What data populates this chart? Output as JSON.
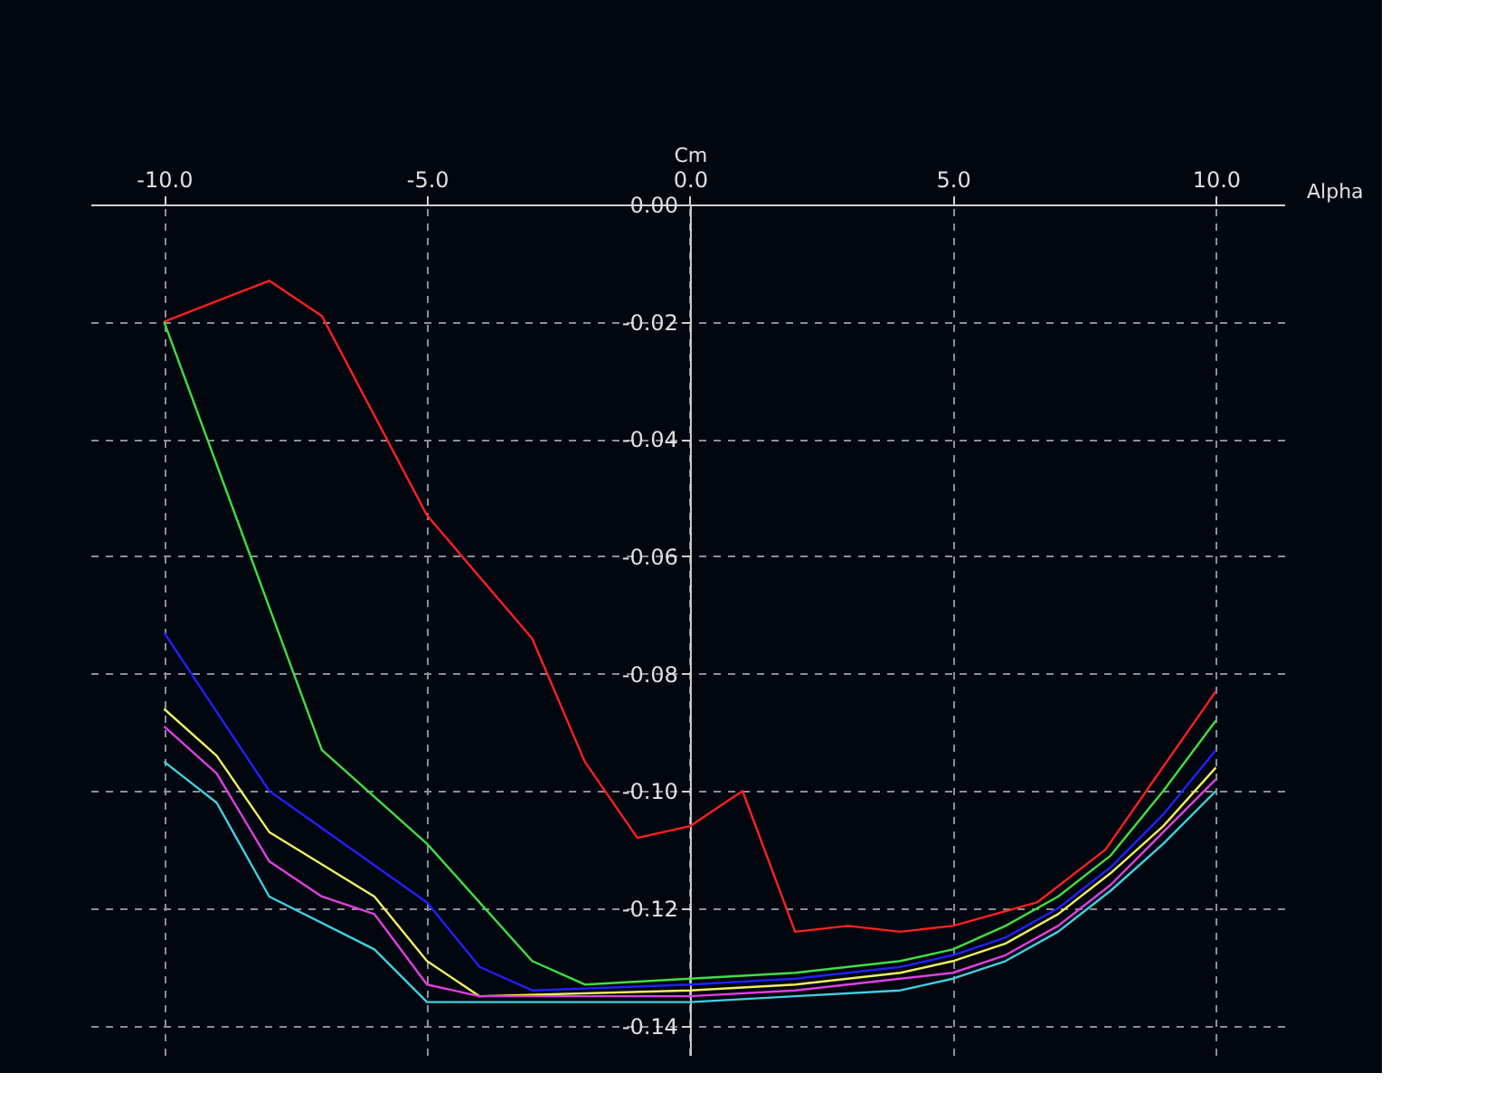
{
  "chart_data": {
    "type": "line",
    "xlabel": "Alpha",
    "ylabel": "Cm",
    "xlim": [
      -11.4,
      11.3
    ],
    "ylim": [
      -0.145,
      0.0
    ],
    "xticks": [
      {
        "value": -10,
        "label": "-10.0"
      },
      {
        "value": -5,
        "label": "-5.0"
      },
      {
        "value": 0,
        "label": "0.0"
      },
      {
        "value": 5,
        "label": "5.0"
      },
      {
        "value": 10,
        "label": "10.0"
      }
    ],
    "yticks": [
      {
        "value": -0.14,
        "label": "-0.14"
      },
      {
        "value": -0.12,
        "label": "-0.12"
      },
      {
        "value": -0.1,
        "label": "-0.10"
      },
      {
        "value": -0.08,
        "label": "-0.08"
      },
      {
        "value": -0.06,
        "label": "-0.06"
      },
      {
        "value": -0.04,
        "label": "-0.04"
      },
      {
        "value": -0.02,
        "label": "-0.02"
      },
      {
        "value": 0,
        "label": "0.00"
      }
    ],
    "grid": true,
    "legend": false,
    "line_style": "solid",
    "marker": "none",
    "series": [
      {
        "color": "#ff2020",
        "x": [
          -10,
          -8,
          -7,
          -5,
          -3,
          -2,
          -1,
          0,
          1,
          2,
          3,
          4,
          5,
          6.6,
          7.9,
          10
        ],
        "values": [
          -0.02,
          -0.013,
          -0.019,
          -0.053,
          -0.074,
          -0.095,
          -0.108,
          -0.106,
          -0.1,
          -0.124,
          -0.123,
          -0.124,
          -0.123,
          -0.119,
          -0.11,
          -0.083
        ]
      },
      {
        "color": "#40e040",
        "x": [
          -10,
          -7,
          -5,
          -3,
          -2,
          0,
          2,
          4,
          5,
          6,
          7,
          8,
          9,
          10
        ],
        "values": [
          -0.02,
          -0.093,
          -0.109,
          -0.129,
          -0.133,
          -0.132,
          -0.131,
          -0.129,
          -0.127,
          -0.123,
          -0.118,
          -0.111,
          -0.1,
          -0.088
        ]
      },
      {
        "color": "#2020ff",
        "x": [
          -10,
          -8,
          -5,
          -4,
          -3,
          0,
          2,
          4,
          5,
          6,
          7,
          8,
          9,
          10
        ],
        "values": [
          -0.073,
          -0.1,
          -0.119,
          -0.13,
          -0.134,
          -0.133,
          -0.132,
          -0.13,
          -0.128,
          -0.125,
          -0.12,
          -0.113,
          -0.104,
          -0.093
        ]
      },
      {
        "color": "#f0f060",
        "x": [
          -10,
          -9,
          -8,
          -6,
          -5,
          -4,
          0,
          2,
          4,
          5,
          6,
          7,
          8,
          9,
          10
        ],
        "values": [
          -0.086,
          -0.094,
          -0.107,
          -0.118,
          -0.129,
          -0.135,
          -0.134,
          -0.133,
          -0.131,
          -0.129,
          -0.126,
          -0.121,
          -0.114,
          -0.106,
          -0.096
        ]
      },
      {
        "color": "#e040e0",
        "x": [
          -10,
          -9,
          -8,
          -7,
          -6,
          -5,
          -4,
          0,
          2,
          4,
          5,
          6,
          7,
          8,
          9,
          10
        ],
        "values": [
          -0.089,
          -0.097,
          -0.112,
          -0.118,
          -0.121,
          -0.133,
          -0.135,
          -0.135,
          -0.134,
          -0.132,
          -0.131,
          -0.128,
          -0.123,
          -0.116,
          -0.107,
          -0.098
        ]
      },
      {
        "color": "#40d0e0",
        "x": [
          -10,
          -9,
          -8,
          -6,
          -5,
          -3,
          0,
          2,
          4,
          5,
          6,
          7,
          8,
          9,
          10
        ],
        "values": [
          -0.095,
          -0.102,
          -0.118,
          -0.127,
          -0.136,
          -0.136,
          -0.136,
          -0.135,
          -0.134,
          -0.132,
          -0.129,
          -0.124,
          -0.117,
          -0.109,
          -0.1
        ]
      }
    ]
  }
}
